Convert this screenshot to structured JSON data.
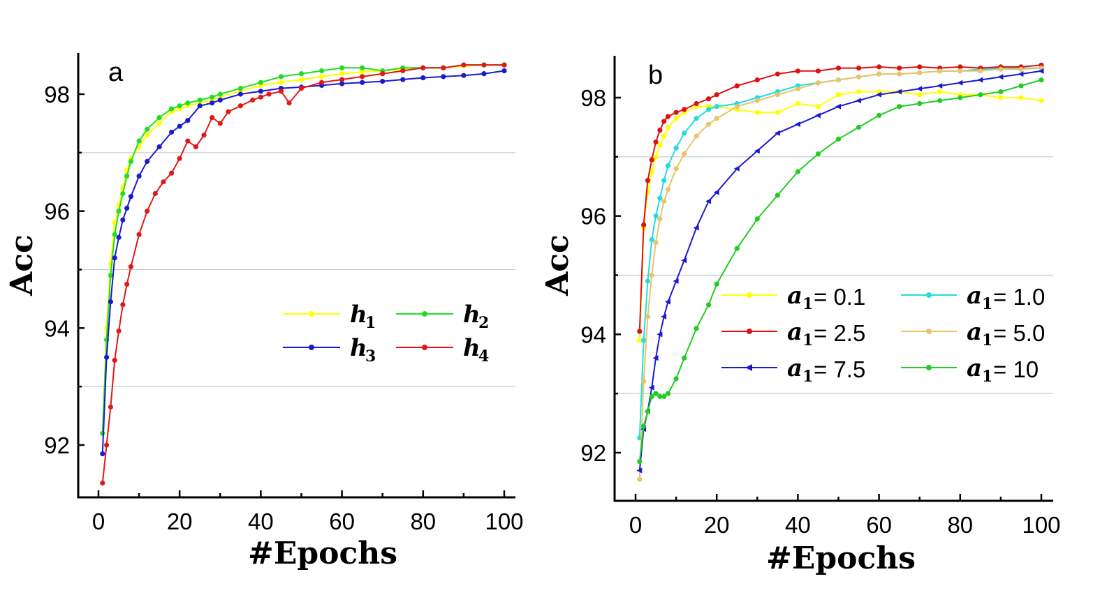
{
  "chart_data": [
    {
      "type": "line",
      "panel_label": "a",
      "xlabel": "#Epochs",
      "ylabel": "Acc",
      "xlim": [
        -5,
        102
      ],
      "ylim": [
        91.1,
        98.7
      ],
      "xticks": [
        0,
        20,
        40,
        60,
        80,
        100
      ],
      "yticks": [
        92,
        94,
        96,
        98
      ],
      "gridlines_y": [
        93,
        95,
        97
      ],
      "legend_position": "center-right",
      "legend_columns": 2,
      "series": [
        {
          "name": "h",
          "subscript": "1",
          "color": "#ffff00",
          "marker": "circle",
          "x": [
            1,
            2,
            3,
            4,
            5,
            6,
            7,
            8,
            10,
            12,
            15,
            18,
            20,
            22,
            25,
            28,
            30,
            35,
            40,
            45,
            50,
            55,
            60,
            65,
            70,
            75,
            80,
            85,
            90,
            95,
            100
          ],
          "y": [
            92.2,
            94.0,
            95.1,
            95.8,
            96.1,
            96.4,
            96.7,
            96.9,
            97.1,
            97.3,
            97.5,
            97.7,
            97.75,
            97.8,
            97.85,
            97.9,
            97.95,
            98.05,
            98.15,
            98.2,
            98.25,
            98.3,
            98.35,
            98.38,
            98.4,
            98.42,
            98.45,
            98.45,
            98.48,
            98.5,
            98.5
          ]
        },
        {
          "name": "h",
          "subscript": "2",
          "color": "#22dd22",
          "marker": "circle",
          "x": [
            1,
            2,
            3,
            4,
            5,
            6,
            7,
            8,
            10,
            12,
            15,
            18,
            20,
            22,
            25,
            28,
            30,
            35,
            40,
            45,
            50,
            55,
            60,
            65,
            70,
            75,
            80,
            85,
            90,
            95,
            100
          ],
          "y": [
            92.2,
            93.8,
            94.9,
            95.6,
            96.0,
            96.3,
            96.6,
            96.85,
            97.2,
            97.4,
            97.6,
            97.75,
            97.8,
            97.85,
            97.9,
            97.95,
            98.0,
            98.1,
            98.2,
            98.3,
            98.35,
            98.4,
            98.45,
            98.45,
            98.4,
            98.45,
            98.45,
            98.45,
            98.5,
            98.5,
            98.5
          ]
        },
        {
          "name": "h",
          "subscript": "3",
          "color": "#1a1ad0",
          "marker": "circle",
          "x": [
            1,
            2,
            3,
            4,
            5,
            6,
            7,
            8,
            10,
            12,
            15,
            18,
            20,
            22,
            25,
            28,
            30,
            35,
            40,
            45,
            50,
            55,
            60,
            65,
            70,
            75,
            80,
            85,
            90,
            95,
            100
          ],
          "y": [
            91.85,
            93.5,
            94.45,
            95.2,
            95.55,
            95.85,
            96.05,
            96.25,
            96.6,
            96.85,
            97.1,
            97.35,
            97.45,
            97.55,
            97.8,
            97.85,
            97.9,
            98.0,
            98.05,
            98.1,
            98.12,
            98.15,
            98.18,
            98.2,
            98.22,
            98.25,
            98.28,
            98.3,
            98.32,
            98.35,
            98.4
          ]
        },
        {
          "name": "h",
          "subscript": "4",
          "color": "#e01818",
          "marker": "circle",
          "x": [
            1,
            2,
            3,
            4,
            5,
            6,
            7,
            8,
            10,
            12,
            14,
            16,
            18,
            20,
            22,
            24,
            26,
            28,
            30,
            32,
            35,
            38,
            40,
            42,
            45,
            47,
            50,
            55,
            60,
            65,
            70,
            75,
            80,
            85,
            90,
            95,
            100
          ],
          "y": [
            91.35,
            92.0,
            92.65,
            93.45,
            93.95,
            94.4,
            94.75,
            95.05,
            95.6,
            96.0,
            96.3,
            96.5,
            96.65,
            96.9,
            97.2,
            97.1,
            97.3,
            97.6,
            97.5,
            97.7,
            97.8,
            97.9,
            97.95,
            98.0,
            98.05,
            97.85,
            98.1,
            98.2,
            98.25,
            98.3,
            98.35,
            98.4,
            98.45,
            98.45,
            98.5,
            98.5,
            98.5
          ]
        }
      ]
    },
    {
      "type": "line",
      "panel_label": "b",
      "xlabel": "#Epochs",
      "ylabel": "Acc",
      "xlim": [
        -5,
        102
      ],
      "ylim": [
        91.2,
        98.7
      ],
      "xticks": [
        0,
        20,
        40,
        60,
        80,
        100
      ],
      "yticks": [
        92,
        94,
        96,
        98
      ],
      "gridlines_y": [
        93,
        95,
        97
      ],
      "legend_position": "center-right",
      "legend_columns": 2,
      "series": [
        {
          "name": "a",
          "subscript": "1",
          "value_label": "= 0.1",
          "color": "#ffff00",
          "marker": "circle",
          "x": [
            1,
            2,
            3,
            4,
            5,
            6,
            7,
            8,
            10,
            12,
            15,
            18,
            20,
            25,
            30,
            35,
            40,
            45,
            50,
            55,
            60,
            65,
            70,
            75,
            80,
            85,
            90,
            95,
            100
          ],
          "y": [
            93.9,
            95.8,
            96.4,
            96.75,
            97.0,
            97.2,
            97.35,
            97.5,
            97.65,
            97.75,
            97.85,
            97.85,
            97.85,
            97.8,
            97.75,
            97.75,
            97.9,
            97.85,
            98.05,
            98.1,
            98.1,
            98.1,
            98.05,
            98.1,
            98.05,
            98.05,
            98.0,
            98.0,
            97.95
          ]
        },
        {
          "name": "a",
          "subscript": "1",
          "value_label": "= 1.0",
          "color": "#22dddd",
          "marker": "circle",
          "x": [
            1,
            2,
            3,
            4,
            5,
            6,
            7,
            8,
            10,
            12,
            15,
            18,
            20,
            25,
            30,
            35,
            40,
            45,
            50,
            55,
            60,
            65,
            70,
            75,
            80,
            85,
            90,
            95,
            100
          ],
          "y": [
            92.25,
            93.9,
            94.9,
            95.6,
            96.0,
            96.3,
            96.6,
            96.85,
            97.15,
            97.4,
            97.65,
            97.8,
            97.85,
            97.9,
            98.0,
            98.1,
            98.2,
            98.25,
            98.3,
            98.35,
            98.4,
            98.4,
            98.42,
            98.45,
            98.45,
            98.48,
            98.5,
            98.5,
            98.5
          ]
        },
        {
          "name": "a",
          "subscript": "1",
          "value_label": "= 2.5",
          "color": "#dd1111",
          "marker": "circle",
          "x": [
            1,
            2,
            3,
            4,
            5,
            6,
            7,
            8,
            10,
            12,
            15,
            18,
            20,
            25,
            30,
            35,
            40,
            45,
            50,
            55,
            60,
            65,
            70,
            75,
            80,
            85,
            90,
            95,
            100
          ],
          "y": [
            94.05,
            95.85,
            96.6,
            96.95,
            97.25,
            97.45,
            97.6,
            97.68,
            97.75,
            97.8,
            97.9,
            97.98,
            98.05,
            98.2,
            98.3,
            98.4,
            98.45,
            98.45,
            98.5,
            98.5,
            98.52,
            98.5,
            98.52,
            98.5,
            98.52,
            98.5,
            98.52,
            98.52,
            98.55
          ]
        },
        {
          "name": "a",
          "subscript": "1",
          "value_label": "= 5.0",
          "color": "#e8c46a",
          "marker": "circle",
          "x": [
            1,
            2,
            3,
            4,
            5,
            6,
            7,
            8,
            10,
            12,
            15,
            18,
            20,
            25,
            30,
            35,
            40,
            45,
            50,
            55,
            60,
            65,
            70,
            75,
            80,
            85,
            90,
            95,
            100
          ],
          "y": [
            91.55,
            93.2,
            94.3,
            95.0,
            95.55,
            95.95,
            96.25,
            96.45,
            96.8,
            97.05,
            97.35,
            97.55,
            97.65,
            97.85,
            97.95,
            98.05,
            98.15,
            98.25,
            98.3,
            98.35,
            98.4,
            98.4,
            98.42,
            98.45,
            98.45,
            98.45,
            98.48,
            98.48,
            98.5
          ]
        },
        {
          "name": "a",
          "subscript": "1",
          "value_label": "= 7.5",
          "color": "#1a1ad0",
          "marker": "triangle-left",
          "x": [
            1,
            2,
            3,
            4,
            5,
            6,
            7,
            8,
            10,
            12,
            15,
            18,
            20,
            25,
            30,
            35,
            40,
            45,
            50,
            55,
            60,
            65,
            70,
            75,
            80,
            85,
            90,
            95,
            100
          ],
          "y": [
            91.7,
            92.4,
            92.7,
            93.1,
            93.6,
            94.0,
            94.3,
            94.55,
            94.9,
            95.25,
            95.8,
            96.25,
            96.4,
            96.8,
            97.1,
            97.4,
            97.55,
            97.7,
            97.85,
            97.95,
            98.05,
            98.1,
            98.15,
            98.2,
            98.25,
            98.3,
            98.35,
            98.4,
            98.45
          ]
        },
        {
          "name": "a",
          "subscript": "1",
          "value_label": "= 10",
          "color": "#22cc22",
          "marker": "circle",
          "x": [
            1,
            2,
            3,
            4,
            5,
            6,
            7,
            8,
            10,
            12,
            15,
            18,
            20,
            25,
            30,
            35,
            40,
            45,
            50,
            55,
            60,
            65,
            70,
            75,
            80,
            85,
            90,
            95,
            100
          ],
          "y": [
            91.85,
            92.45,
            92.7,
            92.95,
            93.0,
            92.95,
            92.95,
            93.0,
            93.25,
            93.6,
            94.1,
            94.5,
            94.85,
            95.45,
            95.95,
            96.35,
            96.75,
            97.05,
            97.3,
            97.5,
            97.7,
            97.85,
            97.9,
            97.95,
            98.0,
            98.05,
            98.1,
            98.2,
            98.3
          ]
        }
      ]
    }
  ]
}
